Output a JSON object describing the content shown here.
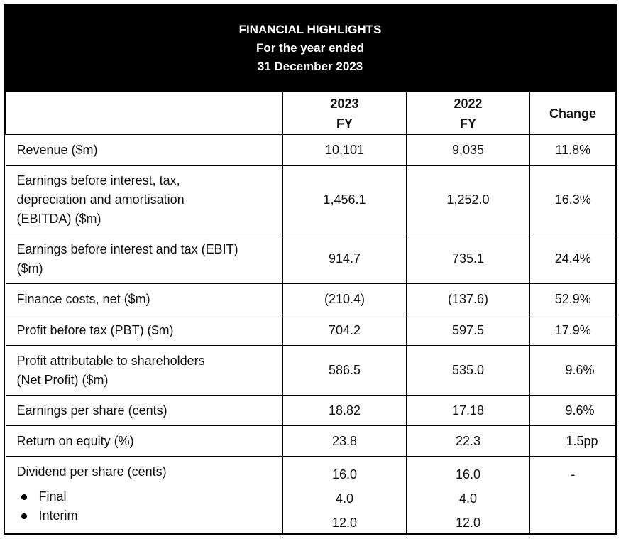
{
  "header": {
    "title": "FINANCIAL HIGHLIGHTS",
    "line2": "For the year ended",
    "line3": "31 December 2023"
  },
  "columns": {
    "y2023": "2023",
    "y2022": "2022",
    "fy": "FY",
    "change": "Change"
  },
  "rows": [
    {
      "label": "Revenue ($m)",
      "v2023": "10,101",
      "v2022": "9,035",
      "change": "11.8%"
    },
    {
      "label_lines": [
        "Earnings before interest, tax,",
        "depreciation and amortisation",
        "(EBITDA) ($m)"
      ],
      "v2023": "1,456.1",
      "v2022": "1,252.0",
      "change": "16.3%"
    },
    {
      "label_lines": [
        "Earnings before interest and tax (EBIT)",
        "($m)"
      ],
      "v2023": "914.7",
      "v2022": "735.1",
      "change": "24.4%"
    },
    {
      "label": "Finance costs, net ($m)",
      "v2023": "(210.4)",
      "v2022": "(137.6)",
      "change": "52.9%"
    },
    {
      "label": "Profit before tax (PBT) ($m)",
      "v2023": "704.2",
      "v2022": "597.5",
      "change": "17.9%"
    },
    {
      "label_lines": [
        "Profit attributable to shareholders",
        "(Net Profit) ($m)"
      ],
      "v2023": "586.5",
      "v2022": "535.0",
      "change": "9.6%"
    },
    {
      "label": "Earnings per share (cents)",
      "v2023": "18.82",
      "v2022": "17.18",
      "change": "9.6%"
    },
    {
      "label": "Return on equity (%)",
      "v2023": "23.8",
      "v2022": "22.3",
      "change": "1.5pp"
    }
  ],
  "dividend": {
    "label": "Dividend per share (cents)",
    "sub1": "Final",
    "sub2": "Interim",
    "v2023": [
      "16.0",
      "4.0",
      "12.0"
    ],
    "v2022": [
      "16.0",
      "4.0",
      "12.0"
    ],
    "change": "-"
  }
}
